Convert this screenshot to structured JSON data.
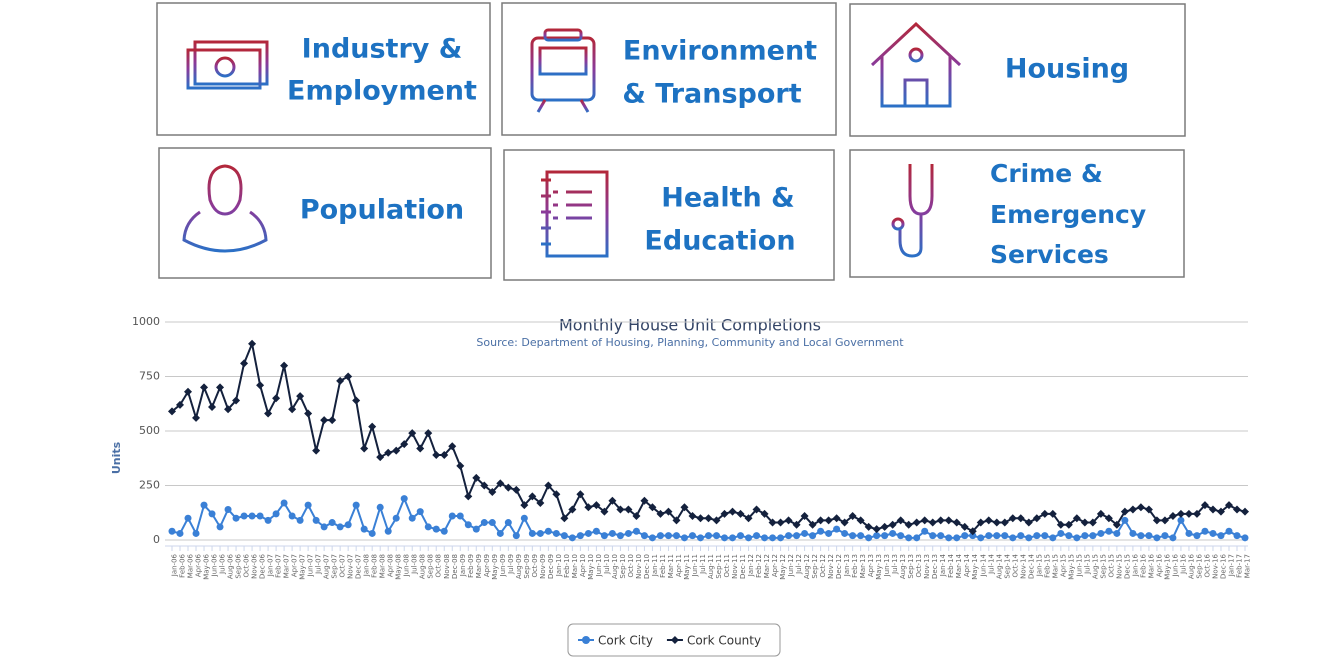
{
  "tiles": [
    {
      "lines": [
        "Industry &",
        "Employment"
      ]
    },
    {
      "lines": [
        "Environment",
        "& Transport"
      ]
    },
    {
      "lines": [
        "Housing"
      ]
    },
    {
      "lines": [
        "Population"
      ]
    },
    {
      "lines": [
        "Health &",
        "Education"
      ]
    },
    {
      "lines": [
        "Crime &",
        "Emergency",
        "Services"
      ]
    }
  ],
  "chart_data": {
    "type": "line",
    "title": "Monthly House Unit Completions",
    "subtitle": "Source: Department of Housing, Planning, Community and Local Government",
    "y_label": "Units",
    "categories": [
      "Jan-06",
      "Feb-06",
      "Mar-06",
      "Apr-06",
      "May-06",
      "Jun-06",
      "Jul-06",
      "Aug-06",
      "Sep-06",
      "Oct-06",
      "Nov-06",
      "Dec-06",
      "Jan-07",
      "Feb-07",
      "Mar-07",
      "Apr-07",
      "May-07",
      "Jun-07",
      "Jul-07",
      "Aug-07",
      "Sep-07",
      "Oct-07",
      "Nov-07",
      "Dec-07",
      "Jan-08",
      "Feb-08",
      "Mar-08",
      "Apr-08",
      "May-08",
      "Jun-08",
      "Jul-08",
      "Aug-08",
      "Sep-08",
      "Oct-08",
      "Nov-08",
      "Dec-08",
      "Jan-09",
      "Feb-09",
      "Mar-09",
      "Apr-09",
      "May-09",
      "Jun-09",
      "Jul-09",
      "Aug-09",
      "Sep-09",
      "Oct-09",
      "Nov-09",
      "Dec-09",
      "Jan-10",
      "Feb-10",
      "Mar-10",
      "Apr-10",
      "May-10",
      "Jun-10",
      "Jul-10",
      "Aug-10",
      "Sep-10",
      "Oct-10",
      "Nov-10",
      "Dec-10",
      "Jan-11",
      "Feb-11",
      "Mar-11",
      "Apr-11",
      "May-11",
      "Jun-11",
      "Jul-11",
      "Aug-11",
      "Sep-11",
      "Oct-11",
      "Nov-11",
      "Dec-11",
      "Jan-12",
      "Feb-12",
      "Mar-12",
      "Apr-12",
      "May-12",
      "Jun-12",
      "Jul-12",
      "Aug-12",
      "Sep-12",
      "Oct-12",
      "Nov-12",
      "Dec-12",
      "Jan-13",
      "Feb-13",
      "Mar-13",
      "Apr-13",
      "May-13",
      "Jun-13",
      "Jul-13",
      "Aug-13",
      "Sep-13",
      "Oct-13",
      "Nov-13",
      "Dec-13",
      "Jan-14",
      "Feb-14",
      "Mar-14",
      "Apr-14",
      "May-14",
      "Jun-14",
      "Jul-14",
      "Aug-14",
      "Sep-14",
      "Oct-14",
      "Nov-14",
      "Dec-14",
      "Jan-15",
      "Feb-15",
      "Mar-15",
      "Apr-15",
      "May-15",
      "Jun-15",
      "Jul-15",
      "Aug-15",
      "Sep-15",
      "Oct-15",
      "Nov-15",
      "Dec-15",
      "Jan-16",
      "Feb-16",
      "Mar-16",
      "Apr-16",
      "May-16",
      "Jun-16",
      "Jul-16",
      "Aug-16",
      "Sep-16",
      "Oct-16",
      "Nov-16",
      "Dec-16",
      "Jan-17",
      "Feb-17",
      "Mar-17"
    ],
    "series": [
      {
        "name": "Cork City",
        "color": "#3a80d6",
        "values": [
          40,
          30,
          100,
          30,
          160,
          120,
          60,
          140,
          100,
          110,
          110,
          110,
          90,
          120,
          170,
          110,
          90,
          160,
          90,
          60,
          80,
          60,
          70,
          160,
          50,
          30,
          150,
          40,
          100,
          190,
          100,
          130,
          60,
          50,
          40,
          110,
          110,
          70,
          50,
          80,
          80,
          30,
          80,
          20,
          100,
          30,
          30,
          40,
          30,
          20,
          10,
          20,
          30,
          40,
          20,
          30,
          20,
          30,
          40,
          20,
          10,
          20,
          20,
          20,
          10,
          20,
          10,
          20,
          20,
          10,
          10,
          20,
          10,
          20,
          10,
          10,
          10,
          20,
          20,
          30,
          20,
          40,
          30,
          50,
          30,
          20,
          20,
          10,
          20,
          20,
          30,
          20,
          10,
          10,
          40,
          20,
          20,
          10,
          10,
          20,
          20,
          10,
          20,
          20,
          20,
          10,
          20,
          10,
          20,
          20,
          10,
          30,
          20,
          10,
          20,
          20,
          30,
          40,
          30,
          90,
          30,
          20,
          20,
          10,
          20,
          10,
          90,
          30,
          20,
          40,
          30,
          20,
          40,
          20,
          10
        ]
      },
      {
        "name": "Cork County",
        "color": "#14213d",
        "values": [
          590,
          620,
          680,
          560,
          700,
          610,
          700,
          600,
          640,
          810,
          900,
          710,
          580,
          650,
          800,
          600,
          660,
          580,
          410,
          550,
          550,
          730,
          750,
          640,
          420,
          520,
          380,
          400,
          410,
          440,
          490,
          420,
          490,
          390,
          390,
          430,
          340,
          200,
          285,
          250,
          220,
          260,
          240,
          230,
          160,
          200,
          170,
          250,
          210,
          100,
          140,
          210,
          150,
          160,
          130,
          180,
          140,
          140,
          110,
          180,
          150,
          120,
          130,
          90,
          150,
          110,
          100,
          100,
          90,
          120,
          130,
          120,
          100,
          140,
          120,
          80,
          80,
          90,
          70,
          110,
          70,
          90,
          90,
          100,
          80,
          110,
          90,
          60,
          50,
          60,
          70,
          90,
          70,
          80,
          90,
          80,
          90,
          90,
          80,
          60,
          40,
          80,
          90,
          80,
          80,
          100,
          100,
          80,
          100,
          120,
          120,
          70,
          70,
          100,
          80,
          80,
          120,
          100,
          70,
          130,
          140,
          150,
          140,
          90,
          90,
          110,
          120,
          120,
          120,
          160,
          140,
          130,
          160,
          140,
          130
        ]
      }
    ],
    "ylim": [
      0,
      1000
    ],
    "yticks": [
      0,
      250,
      500,
      750,
      1000
    ],
    "grid": true,
    "legend": "bottom"
  }
}
